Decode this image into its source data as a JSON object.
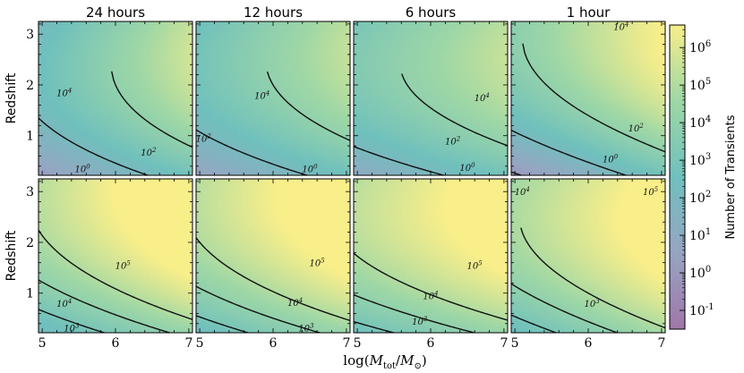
{
  "chart_data": {
    "type": "heatmap",
    "layout": "2 rows x 4 columns of contour heatmaps",
    "column_titles": [
      "24 hours",
      "12 hours",
      "6 hours",
      "1 hour"
    ],
    "xlabel_base": "log(",
    "xlabel_math": "M",
    "xlabel_sub": "tot",
    "xlabel_slash": "/",
    "xlabel_sun_sub": "⊙",
    "xlabel_close": ")",
    "ylabel": "Redshift",
    "xlim": [
      4.95,
      7.05
    ],
    "ylim": [
      0.22,
      3.25
    ],
    "x_ticks": [
      "5",
      "6",
      "7"
    ],
    "x_tick_values": [
      5,
      6,
      7
    ],
    "y_ticks": [
      "1",
      "2",
      "3"
    ],
    "y_tick_values": [
      1,
      2,
      3
    ],
    "colorbar": {
      "label": "Number of Transients",
      "scale": "log",
      "range_log10": [
        -1.5,
        6.6
      ],
      "tick_exponents": [
        "6",
        "5",
        "4",
        "3",
        "2",
        "1",
        "0",
        "-1"
      ],
      "tick_values_log10": [
        6,
        5,
        4,
        3,
        2,
        1,
        0,
        -1
      ],
      "tick_base": "10",
      "colormap": [
        "#a076a9",
        "#96a5c2",
        "#6fc0bd",
        "#9ed7a6",
        "#f8ee8a"
      ]
    },
    "panels": [
      {
        "row": 0,
        "col": 0,
        "field": {
          "a": -0.3,
          "bx": 1.2,
          "by": 2.5,
          "byy": -0.55,
          "bxy": 0.15
        },
        "contours": [
          {
            "level_log10": 0,
            "label": "10",
            "exp": "0",
            "label_at": [
              5.55,
              0.35
            ]
          },
          {
            "level_log10": 2,
            "label": "10",
            "exp": "2",
            "label_at": [
              6.45,
              0.68
            ]
          },
          {
            "level_log10": 4,
            "label": "10",
            "exp": "4",
            "label_at": [
              5.3,
              1.85
            ]
          }
        ]
      },
      {
        "row": 0,
        "col": 1,
        "field": {
          "a": 0.0,
          "bx": 1.0,
          "by": 2.4,
          "byy": -0.5,
          "bxy": 0.1
        },
        "contours": [
          {
            "level_log10": 0,
            "label": "10",
            "exp": "0",
            "label_at": [
              6.5,
              0.35
            ]
          },
          {
            "level_log10": 2,
            "label": "10",
            "exp": "2",
            "label_at": [
              5.05,
              0.95
            ]
          },
          {
            "level_log10": 4,
            "label": "10",
            "exp": "4",
            "label_at": [
              5.85,
              1.8
            ]
          }
        ]
      },
      {
        "row": 0,
        "col": 2,
        "field": {
          "a": 0.4,
          "bx": 0.9,
          "by": 2.5,
          "byy": -0.52,
          "bxy": 0.05
        },
        "contours": [
          {
            "level_log10": 0,
            "label": "10",
            "exp": "0",
            "label_at": [
              6.5,
              0.38
            ]
          },
          {
            "level_log10": 2,
            "label": "10",
            "exp": "2",
            "label_at": [
              6.3,
              0.9
            ]
          },
          {
            "level_log10": 4,
            "label": "10",
            "exp": "4",
            "label_at": [
              6.7,
              1.75
            ]
          }
        ]
      },
      {
        "row": 0,
        "col": 3,
        "field": {
          "a": -0.8,
          "bx": 1.4,
          "by": 3.2,
          "byy": -0.55,
          "bxy": 0.0
        },
        "contours": [
          {
            "level_log10": 0,
            "label": "10",
            "exp": "0",
            "label_at": [
              6.3,
              0.55
            ]
          },
          {
            "level_log10": 2,
            "label": "10",
            "exp": "2",
            "label_at": [
              6.65,
              1.15
            ]
          },
          {
            "level_log10": 4,
            "label": "10",
            "exp": "4",
            "label_at": [
              6.45,
              3.15
            ]
          }
        ]
      },
      {
        "row": 1,
        "col": 0,
        "field": {
          "a": 1.5,
          "bx": 1.1,
          "by": 2.6,
          "byy": -0.45,
          "bxy": 0.1
        },
        "contours": [
          {
            "level_log10": 3,
            "label": "10",
            "exp": "3",
            "label_at": [
              5.4,
              0.32
            ]
          },
          {
            "level_log10": 4,
            "label": "10",
            "exp": "4",
            "label_at": [
              5.3,
              0.8
            ]
          },
          {
            "level_log10": 5,
            "label": "10",
            "exp": "5",
            "label_at": [
              6.1,
              1.55
            ]
          }
        ]
      },
      {
        "row": 1,
        "col": 1,
        "field": {
          "a": 1.8,
          "bx": 1.0,
          "by": 2.5,
          "byy": -0.45,
          "bxy": 0.1
        },
        "contours": [
          {
            "level_log10": 3,
            "label": "10",
            "exp": "3",
            "label_at": [
              6.45,
              0.32
            ]
          },
          {
            "level_log10": 4,
            "label": "10",
            "exp": "4",
            "label_at": [
              6.3,
              0.82
            ]
          },
          {
            "level_log10": 5,
            "label": "10",
            "exp": "5",
            "label_at": [
              6.6,
              1.6
            ]
          }
        ]
      },
      {
        "row": 1,
        "col": 2,
        "field": {
          "a": 2.0,
          "bx": 0.9,
          "by": 2.6,
          "byy": -0.5,
          "bxy": 0.05
        },
        "contours": [
          {
            "level_log10": 3,
            "label": "10",
            "exp": "3",
            "label_at": [
              5.85,
              0.45
            ]
          },
          {
            "level_log10": 4,
            "label": "10",
            "exp": "4",
            "label_at": [
              6.0,
              0.95
            ]
          },
          {
            "level_log10": 5,
            "label": "10",
            "exp": "5",
            "label_at": [
              6.6,
              1.55
            ]
          }
        ]
      },
      {
        "row": 1,
        "col": 3,
        "field": {
          "a": 1.8,
          "bx": 1.2,
          "by": 2.5,
          "byy": -0.5,
          "bxy": 0.0
        },
        "contours": [
          {
            "level_log10": 3,
            "label": "10",
            "exp": "3",
            "label_at": [
              6.05,
              0.8
            ]
          },
          {
            "level_log10": 4,
            "label": "10",
            "exp": "4",
            "label_at": [
              5.1,
              3.0
            ]
          },
          {
            "level_log10": 5,
            "label": "10",
            "exp": "5",
            "label_at": [
              6.85,
              3.0
            ]
          }
        ]
      }
    ]
  }
}
